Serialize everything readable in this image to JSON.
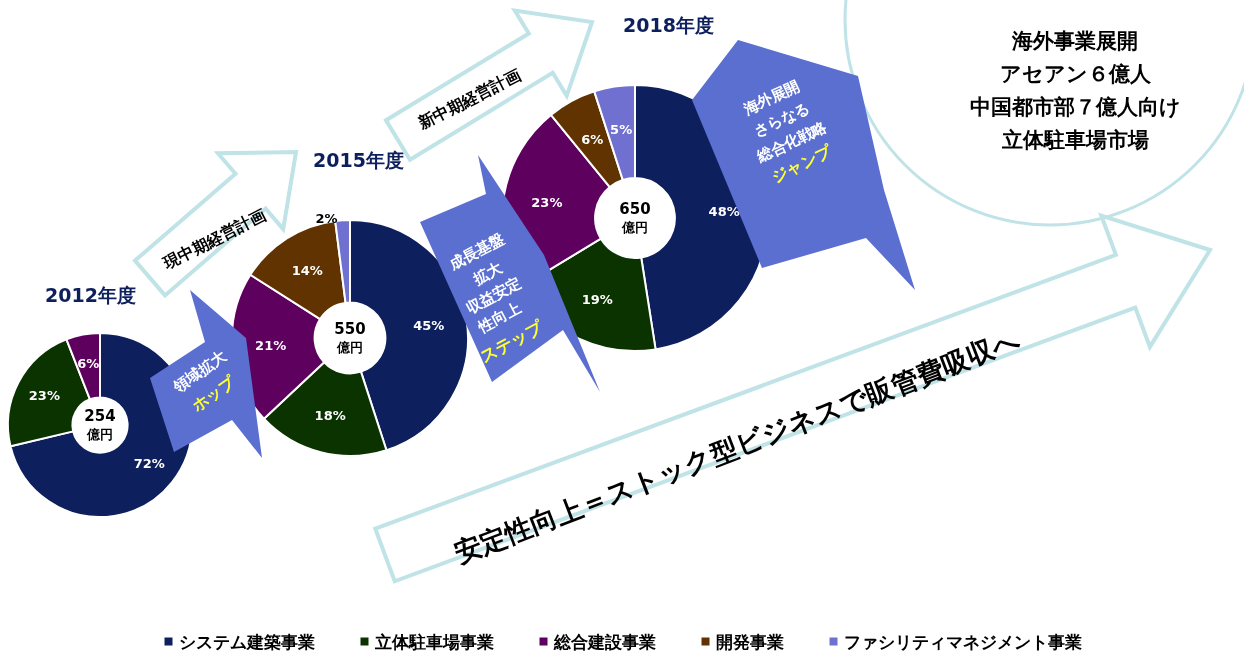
{
  "chart_data": [
    {
      "type": "donut",
      "categories": [
        "システム建築事業",
        "立体駐車場事業",
        "総合建設事業",
        "開発事業",
        "ファシリティマネジメント事業"
      ],
      "colors": [
        "#0d1f5c",
        "#0a3300",
        "#5e005e",
        "#603300",
        "#7070d0"
      ],
      "legend": "bottom",
      "annotations": [
        "254",
        "億円",
        "550",
        "億円",
        "650",
        "億円"
      ],
      "series": [
        {
          "name": "2012年度",
          "values": [
            72,
            23,
            6,
            null,
            null
          ],
          "value_labels": [
            "72%",
            "23%",
            "6%",
            null,
            null
          ]
        },
        {
          "name": "2015年度",
          "values": [
            45,
            18,
            21,
            14,
            2
          ],
          "value_labels": [
            "45%",
            "18%",
            "21%",
            "14%",
            "2%"
          ]
        },
        {
          "name": "2018年度",
          "values": [
            48,
            19,
            23,
            6,
            5
          ],
          "value_labels": [
            "48%",
            "19%",
            "23%",
            "6%",
            "5%"
          ]
        }
      ]
    },
    {
      "type": "other",
      "annotations": [
        "現中期経営計画",
        "新中期経営計画",
        "領域拡大",
        "ホップ",
        "成長基盤",
        "拡大",
        "収益安定",
        "性向上",
        "ステップ",
        "海外展開",
        "さらなる",
        "総合化戦略",
        "ジャンプ",
        "安定性向上＝ストック型ビジネスで販管費吸収へ",
        "海外事業展開",
        "アセアン６億人",
        "中国都市部７億人向け",
        "立体駐車場市場"
      ]
    }
  ]
}
